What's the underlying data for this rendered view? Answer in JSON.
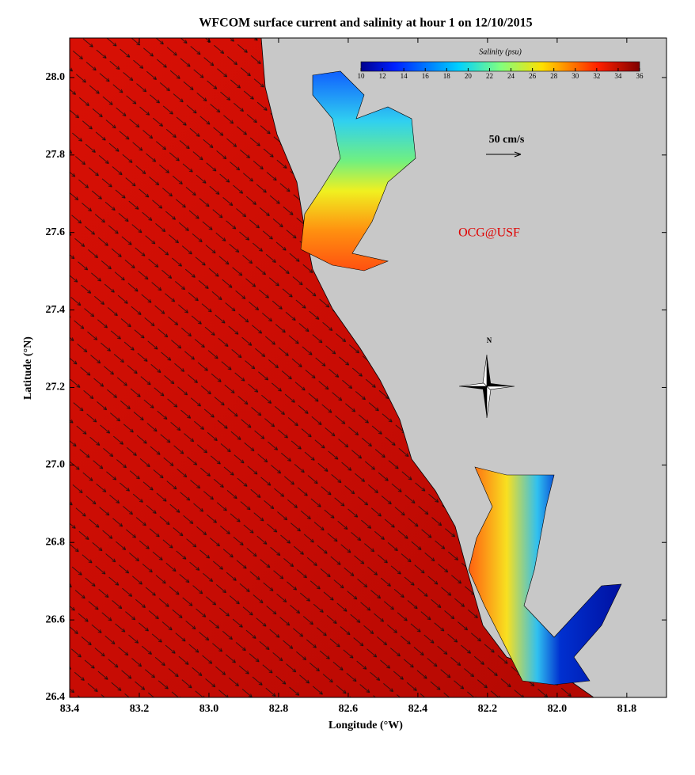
{
  "chart_data": {
    "type": "map",
    "title": "WFCOM surface current and salinity at hour 1 on 12/10/2015",
    "x_label": "Longitude (°W)",
    "y_label": "Latitude (°N)",
    "xlim": [
      83.4,
      81.686
    ],
    "ylim": [
      26.4,
      28.102
    ],
    "xticks": [
      83.4,
      83.2,
      {
        "value": 83.0,
        "label": "83.0"
      },
      82.8,
      82.6,
      82.4,
      82.2,
      {
        "value": 82.0,
        "label": "82.0"
      },
      81.8
    ],
    "yticks": [
      26.4,
      26.6,
      26.8,
      {
        "value": 27.0,
        "label": "27.0"
      },
      27.2,
      27.4,
      27.6,
      27.8,
      {
        "value": 28.0,
        "label": "28.0"
      }
    ],
    "colorbar": {
      "label": "Salinity (psu)",
      "lim": [
        10,
        36
      ],
      "ticks": [
        10,
        12,
        14,
        16,
        18,
        20,
        22,
        24,
        26,
        28,
        30,
        32,
        34,
        36
      ],
      "colormap": "jet"
    },
    "scale_label": "50 cm/s",
    "credit": "OCG@USF",
    "north": "N"
  }
}
